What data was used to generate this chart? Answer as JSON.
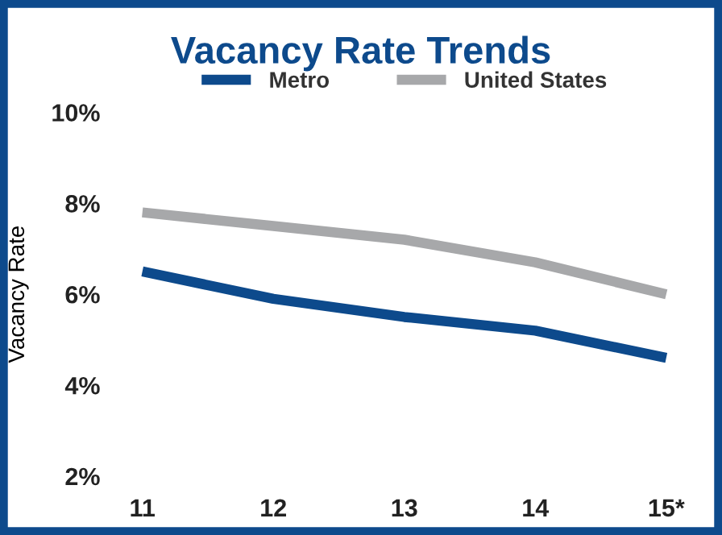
{
  "chart_data": {
    "type": "line",
    "title": "Vacancy Rate Trends",
    "ylabel": "Vacancy Rate",
    "categories": [
      "11",
      "12",
      "13",
      "14",
      "15*"
    ],
    "series": [
      {
        "name": "Metro",
        "color": "#0d4a8c",
        "values": [
          6.5,
          5.9,
          5.5,
          5.2,
          4.6
        ]
      },
      {
        "name": "United States",
        "color": "#a7a8aa",
        "values": [
          7.8,
          7.5,
          7.2,
          6.7,
          6.0
        ]
      }
    ],
    "ylim": [
      2,
      10
    ],
    "yticks": [
      {
        "value": 2,
        "label": "2%"
      },
      {
        "value": 4,
        "label": "4%"
      },
      {
        "value": 6,
        "label": "6%"
      },
      {
        "value": 8,
        "label": "8%"
      },
      {
        "value": 10,
        "label": "10%"
      }
    ],
    "grid": false,
    "legend": "top",
    "marker": "none",
    "line_style": "solid"
  }
}
